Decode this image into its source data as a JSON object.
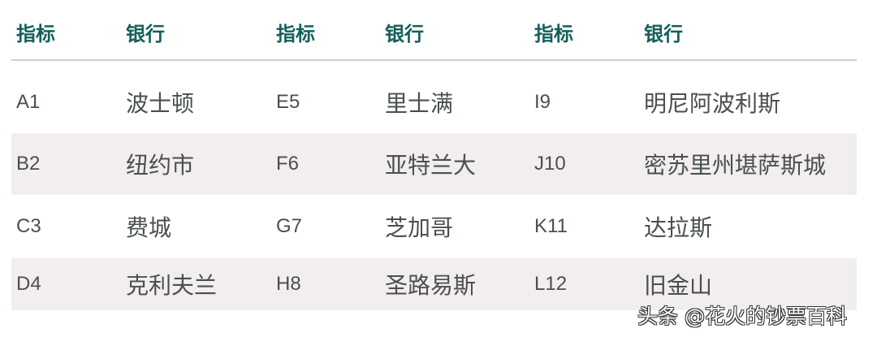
{
  "headers": [
    "指标",
    "银行",
    "指标",
    "银行",
    "指标",
    "银行"
  ],
  "rows": [
    [
      "A1",
      "波士顿",
      "E5",
      "里士满",
      "I9",
      "明尼阿波利斯"
    ],
    [
      "B2",
      "纽约市",
      "F6",
      "亚特兰大",
      "J10",
      "密苏里州堪萨斯城"
    ],
    [
      "C3",
      "费城",
      "G7",
      "芝加哥",
      "K11",
      "达拉斯"
    ],
    [
      "D4",
      "克利夫兰",
      "H8",
      "圣路易斯",
      "L12",
      "旧金山"
    ]
  ],
  "colors": {
    "header": "#145f5a",
    "text": "#4a4f4f",
    "row_shade": "#f1eeed"
  },
  "watermark": "头条 @花火的钞票百科"
}
